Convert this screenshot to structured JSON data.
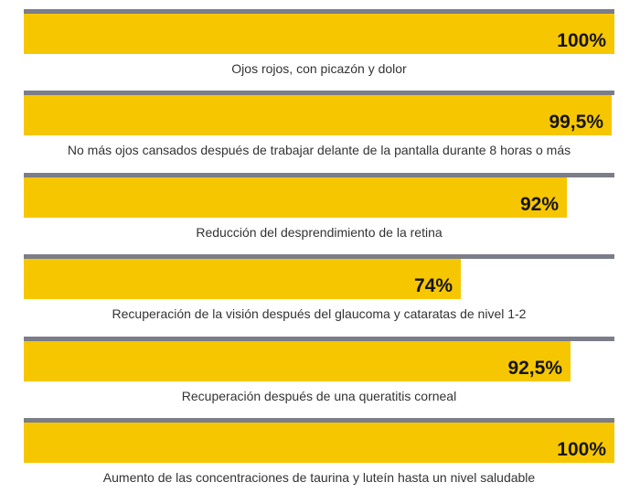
{
  "chart_data": {
    "type": "bar",
    "orientation": "horizontal",
    "xlim": [
      0,
      100
    ],
    "grid": false,
    "colors": {
      "bar": "#f6c600",
      "track": "#7b7d88",
      "value_text": "#151515",
      "category_text": "#333333"
    },
    "categories": [
      "Ojos rojos, con picazón y dolor",
      "No más ojos cansados después de trabajar delante de la pantalla durante 8 horas o más",
      "Reducción del desprendimiento de la retina",
      "Recuperación de la visión después del glaucoma y cataratas de nivel 1-2",
      "Recuperación después de una queratitis corneal",
      "Aumento de las concentraciones de taurina y luteín hasta un nivel saludable"
    ],
    "values": [
      100,
      99.5,
      92,
      74,
      92.5,
      100
    ],
    "data_labels": [
      "100%",
      "99,5%",
      "92%",
      "74%",
      "92,5%",
      "100%"
    ]
  }
}
